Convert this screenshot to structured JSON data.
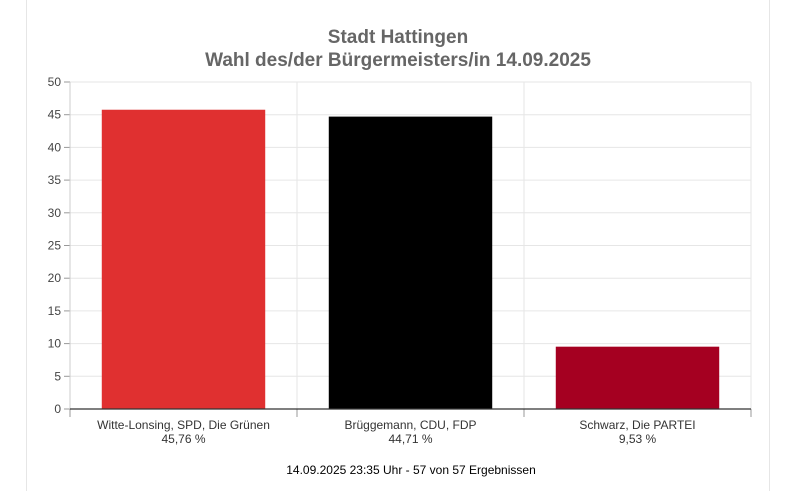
{
  "chart_data": {
    "type": "bar",
    "title": "Stadt Hattingen",
    "subtitle": "Wahl des/der Bürgermeisters/in 14.09.2025",
    "categories": [
      "Witte-Lonsing, SPD, Die Grünen",
      "Brüggemann, CDU, FDP",
      "Schwarz, Die PARTEI"
    ],
    "value_labels": [
      "45,76 %",
      "44,71 %",
      "9,53 %"
    ],
    "values": [
      45.76,
      44.71,
      9.53
    ],
    "colors": [
      "#e03030",
      "#000000",
      "#a50021"
    ],
    "ylim": [
      0,
      50
    ],
    "yticks": [
      0,
      5,
      10,
      15,
      20,
      25,
      30,
      35,
      40,
      45,
      50
    ],
    "grid": true,
    "footer": "14.09.2025 23:35 Uhr - 57 von 57 Ergebnissen"
  }
}
